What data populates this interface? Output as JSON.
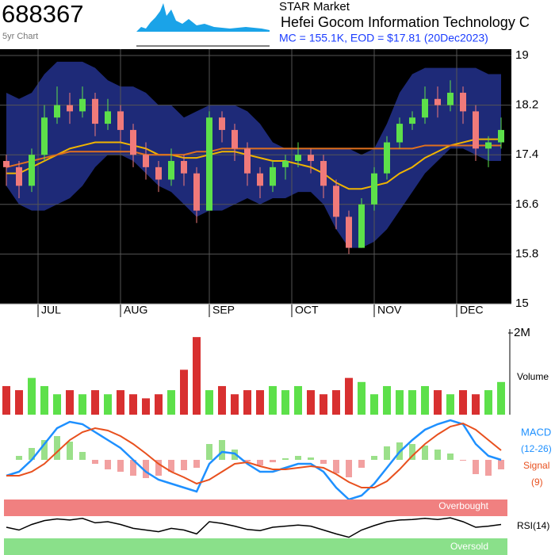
{
  "header": {
    "ticker": "688367",
    "subtitle": "5yr Chart",
    "market": "STAR Market",
    "name": "Hefei Gocom Information  Technology C",
    "summary": "MC = 155.1K, EOD = $17.81 (20Dec2023)"
  },
  "chart_data": [
    {
      "type": "candlestick",
      "open": [
        17.3,
        17.2,
        16.9,
        17.4,
        18.0,
        18.2,
        18.1,
        18.3,
        17.9,
        18.1,
        17.8,
        17.4,
        17.2,
        17.0,
        17.3,
        17.1,
        16.5,
        18.0,
        17.8,
        17.5,
        17.1,
        16.9,
        17.2,
        17.3,
        17.4,
        17.3,
        16.9,
        16.4,
        15.9,
        16.6,
        17.1,
        17.6,
        17.9,
        18.0,
        18.3,
        18.2,
        18.4,
        18.1,
        17.5,
        17.6
      ],
      "high": [
        17.4,
        17.3,
        17.5,
        18.2,
        18.5,
        18.4,
        18.5,
        18.4,
        18.3,
        18.2,
        17.9,
        17.6,
        17.3,
        17.5,
        17.4,
        17.2,
        18.1,
        18.1,
        17.9,
        17.6,
        17.2,
        17.3,
        17.4,
        17.6,
        17.5,
        17.4,
        17.0,
        16.5,
        16.7,
        17.2,
        17.7,
        18.0,
        18.1,
        18.5,
        18.5,
        18.6,
        18.5,
        18.2,
        17.7,
        18.0
      ],
      "low": [
        16.9,
        16.7,
        16.8,
        17.3,
        17.9,
        17.9,
        18.0,
        17.7,
        17.8,
        17.6,
        17.2,
        17.0,
        16.8,
        16.9,
        16.9,
        16.3,
        16.5,
        17.6,
        17.3,
        16.9,
        16.7,
        16.8,
        17.0,
        17.2,
        17.1,
        16.7,
        16.2,
        15.8,
        15.9,
        16.5,
        17.0,
        17.5,
        17.8,
        17.9,
        18.0,
        18.1,
        17.9,
        17.3,
        17.2,
        17.5
      ],
      "close": [
        17.2,
        16.9,
        17.4,
        18.0,
        18.2,
        18.1,
        18.3,
        17.9,
        18.1,
        17.8,
        17.4,
        17.2,
        17.0,
        17.3,
        17.1,
        16.5,
        18.0,
        17.8,
        17.5,
        17.1,
        16.9,
        17.2,
        17.3,
        17.4,
        17.3,
        16.9,
        16.4,
        15.9,
        16.6,
        17.1,
        17.6,
        17.9,
        18.0,
        18.3,
        18.2,
        18.4,
        18.1,
        17.5,
        17.6,
        17.8
      ],
      "up_color": "#5de04a",
      "down_color": "#f07a7a",
      "bands": {
        "color": "#1e2a78",
        "upper": [
          18.4,
          18.3,
          18.4,
          18.7,
          18.9,
          18.9,
          18.9,
          18.8,
          18.6,
          18.5,
          18.5,
          18.4,
          18.2,
          18.2,
          18.0,
          18.1,
          18.2,
          18.2,
          18.2,
          18.1,
          17.9,
          17.6,
          17.5,
          17.5,
          17.5,
          17.5,
          17.5,
          17.5,
          17.4,
          17.5,
          17.9,
          18.4,
          18.7,
          18.8,
          18.8,
          18.8,
          18.8,
          18.8,
          18.7,
          18.7
        ],
        "lower": [
          16.9,
          16.6,
          16.5,
          16.5,
          16.6,
          16.7,
          16.9,
          17.2,
          17.4,
          17.4,
          17.3,
          17.1,
          16.9,
          16.8,
          16.6,
          16.4,
          16.5,
          16.5,
          16.6,
          16.7,
          16.6,
          16.7,
          16.7,
          16.8,
          16.8,
          16.6,
          16.2,
          15.9,
          15.9,
          16.0,
          16.2,
          16.5,
          16.8,
          17.1,
          17.3,
          17.5,
          17.5,
          17.4,
          17.3,
          17.3
        ]
      },
      "lines": [
        {
          "color": "#f0b400",
          "values": [
            17.1,
            17.1,
            17.2,
            17.3,
            17.4,
            17.5,
            17.55,
            17.6,
            17.6,
            17.6,
            17.55,
            17.5,
            17.4,
            17.4,
            17.35,
            17.35,
            17.4,
            17.45,
            17.45,
            17.4,
            17.35,
            17.3,
            17.3,
            17.25,
            17.2,
            17.1,
            16.95,
            16.85,
            16.85,
            16.9,
            16.95,
            17.1,
            17.2,
            17.35,
            17.45,
            17.55,
            17.6,
            17.65,
            17.65,
            17.65
          ]
        },
        {
          "color": "#e0701e",
          "values": [
            17.2,
            17.25,
            17.3,
            17.35,
            17.4,
            17.45,
            17.45,
            17.45,
            17.45,
            17.45,
            17.45,
            17.4,
            17.4,
            17.4,
            17.4,
            17.45,
            17.45,
            17.5,
            17.5,
            17.5,
            17.5,
            17.5,
            17.5,
            17.5,
            17.5,
            17.5,
            17.5,
            17.5,
            17.5,
            17.5,
            17.5,
            17.5,
            17.5,
            17.55,
            17.55,
            17.55,
            17.55,
            17.55,
            17.55,
            17.55
          ]
        }
      ],
      "ylim": [
        15,
        19
      ],
      "yticks": [
        15,
        15.8,
        16.6,
        17.4,
        18.2,
        19
      ],
      "grid": true,
      "xticks": [
        {
          "value": 2.5,
          "label": "JUL"
        },
        {
          "value": 9,
          "label": "AUG"
        },
        {
          "value": 16,
          "label": "SEP"
        },
        {
          "value": 22.5,
          "label": "OCT"
        },
        {
          "value": 29,
          "label": "NOV"
        },
        {
          "value": 35.5,
          "label": "DEC"
        }
      ]
    },
    {
      "type": "bar",
      "label": "Volume",
      "values": [
        700000,
        600000,
        900000,
        700000,
        500000,
        600000,
        500000,
        600000,
        500000,
        600000,
        500000,
        400000,
        500000,
        600000,
        1100000,
        1900000,
        600000,
        700000,
        500000,
        600000,
        600000,
        700000,
        600000,
        700000,
        600000,
        500000,
        600000,
        900000,
        800000,
        500000,
        700000,
        600000,
        600000,
        700000,
        600000,
        500000,
        600000,
        500000,
        600000,
        800000
      ],
      "ylim": [
        0,
        2000000
      ],
      "yticks": [
        {
          "value": 2000000,
          "label": "2M"
        }
      ]
    },
    {
      "type": "macd",
      "macd_label": "MACD",
      "macd_period": "(12-26)",
      "signal_label": "Signal",
      "signal_period": "(9)",
      "macd_color": "#1e90ff",
      "signal_color": "#e8501e",
      "macd": [
        -0.2,
        -0.15,
        0.0,
        0.2,
        0.4,
        0.48,
        0.45,
        0.35,
        0.25,
        0.15,
        0.0,
        -0.15,
        -0.25,
        -0.3,
        -0.35,
        -0.4,
        -0.05,
        0.1,
        0.08,
        -0.05,
        -0.15,
        -0.15,
        -0.1,
        -0.05,
        -0.05,
        -0.15,
        -0.35,
        -0.5,
        -0.45,
        -0.3,
        -0.1,
        0.1,
        0.25,
        0.38,
        0.45,
        0.5,
        0.45,
        0.2,
        0.05,
        0.0
      ],
      "signal": [
        -0.2,
        -0.2,
        -0.15,
        -0.05,
        0.1,
        0.25,
        0.35,
        0.4,
        0.37,
        0.3,
        0.2,
        0.08,
        -0.05,
        -0.15,
        -0.22,
        -0.3,
        -0.25,
        -0.15,
        -0.05,
        -0.03,
        -0.08,
        -0.12,
        -0.12,
        -0.1,
        -0.08,
        -0.1,
        -0.18,
        -0.28,
        -0.35,
        -0.35,
        -0.27,
        -0.12,
        0.05,
        0.2,
        0.32,
        0.42,
        0.46,
        0.38,
        0.25,
        0.12
      ],
      "histogram": [
        0,
        0.05,
        0.15,
        0.25,
        0.3,
        0.23,
        0.1,
        -0.05,
        -0.12,
        -0.15,
        -0.2,
        -0.23,
        -0.2,
        -0.15,
        -0.13,
        -0.1,
        0.2,
        0.25,
        0.13,
        -0.02,
        -0.07,
        -0.03,
        0.02,
        0.05,
        0.03,
        -0.05,
        -0.17,
        -0.22,
        -0.1,
        0.05,
        0.17,
        0.22,
        0.2,
        0.18,
        0.13,
        0.08,
        -0.01,
        -0.18,
        -0.2,
        -0.12
      ],
      "ylim": [
        -0.5,
        0.5
      ]
    },
    {
      "type": "rsi",
      "label": "RSI(14)",
      "overbought_label": "Overbought",
      "oversold_label": "Oversold",
      "overbought": 70,
      "oversold": 30,
      "values": [
        50,
        45,
        55,
        62,
        65,
        63,
        66,
        58,
        60,
        55,
        48,
        45,
        42,
        48,
        45,
        38,
        60,
        57,
        52,
        46,
        44,
        50,
        52,
        54,
        52,
        45,
        38,
        32,
        45,
        53,
        60,
        63,
        64,
        66,
        64,
        67,
        60,
        50,
        52,
        55
      ],
      "ylim": [
        0,
        100
      ]
    }
  ]
}
